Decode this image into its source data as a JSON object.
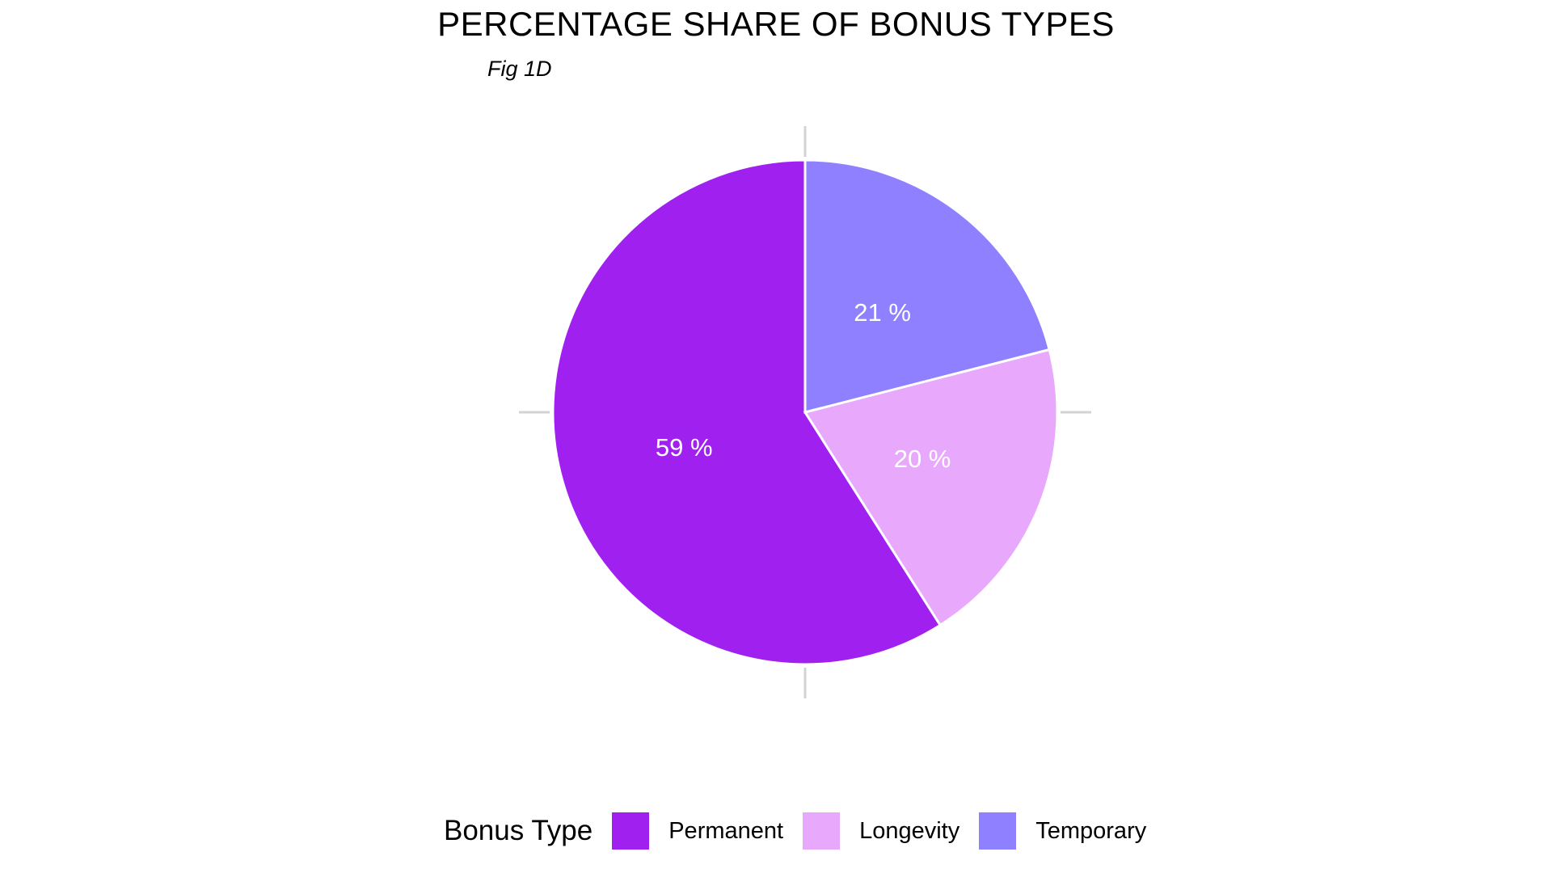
{
  "chart_data": {
    "type": "pie",
    "title": "PERCENTAGE SHARE OF BONUS TYPES",
    "subtitle": "Fig 1D",
    "legend_title": "Bonus Type",
    "legend_position": "bottom",
    "categories": [
      "Permanent",
      "Longevity",
      "Temporary"
    ],
    "values": [
      59,
      20,
      21
    ],
    "labels": [
      "59 %",
      "20 %",
      "21 %"
    ],
    "colors": [
      "#A020F0",
      "#E8A9FC",
      "#8E80FF"
    ],
    "start": "12 o'clock",
    "direction": "counter-clockwise"
  }
}
